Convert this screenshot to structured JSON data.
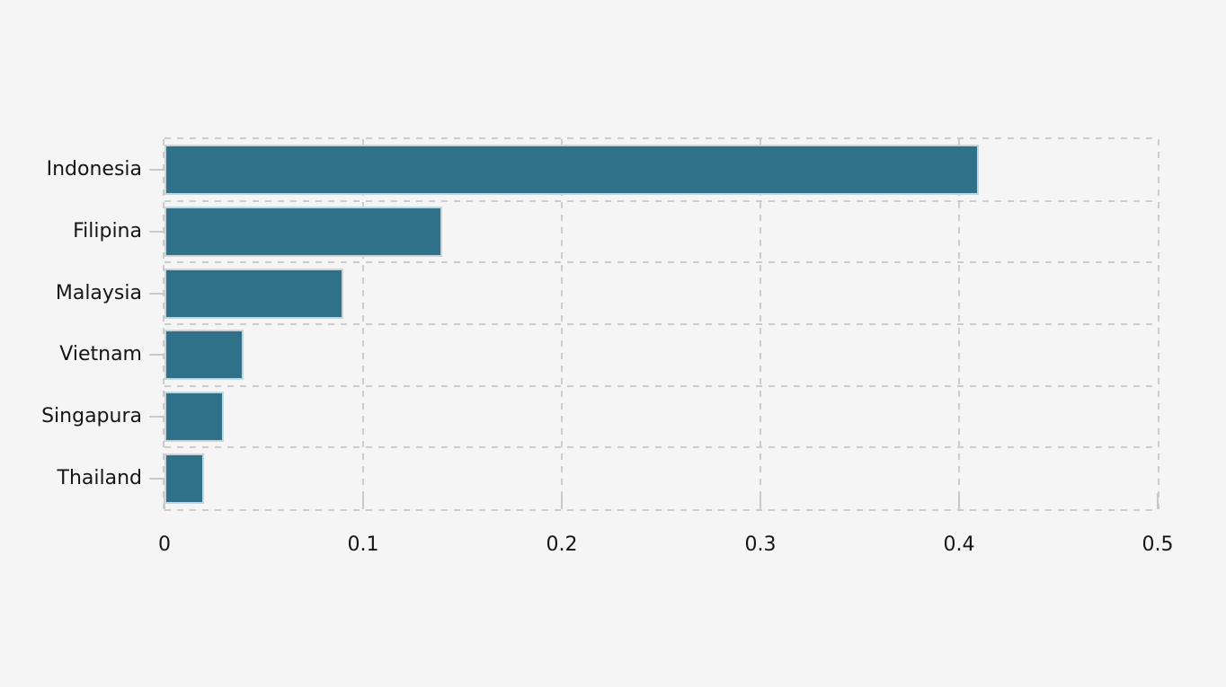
{
  "figure": {
    "background": "#f5f5f5",
    "text_color": "#151515"
  },
  "chart_data": {
    "type": "bar",
    "orientation": "horizontal",
    "categories": [
      "Indonesia",
      "Filipina",
      "Malaysia",
      "Vietnam",
      "Singapura",
      "Thailand"
    ],
    "values": [
      0.41,
      0.14,
      0.09,
      0.04,
      0.03,
      0.02
    ],
    "xlim": [
      0,
      0.5
    ],
    "xticks": [
      0,
      0.1,
      0.2,
      0.3,
      0.4,
      0.5
    ],
    "xtick_labels": [
      "0",
      "0.1",
      "0.2",
      "0.3",
      "0.4",
      "0.5"
    ],
    "grid": "dashed",
    "legend_position": "none",
    "bar_color": "#2f7189",
    "bar_edge_color": "#c6d5dc",
    "grid_color": "#cccccc",
    "tick_color": "#c9c9c9"
  }
}
